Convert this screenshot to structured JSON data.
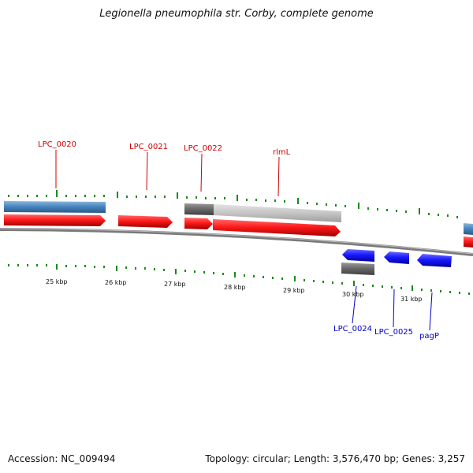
{
  "title": "Legionella pneumophila str. Corby, complete genome",
  "footer": {
    "accession": "Accession: NC_009494",
    "summary": "Topology: circular; Length: 3,576,470 bp; Genes: 3,257"
  },
  "colors": {
    "forward_cds": "#ff1a1a",
    "reverse_cds": "#1a1aff",
    "gene_blue": "#4a87c0",
    "gray": "#6b6b6b",
    "light_gray": "#c4c4c4",
    "tick": "#1a8a1a",
    "label_red": "#cc0000",
    "label_blue": "#0000cc"
  },
  "scale": {
    "units": "kbp",
    "ticks": [
      "25 kbp",
      "26 kbp",
      "27 kbp",
      "28 kbp",
      "29 kbp",
      "30 kbp",
      "31 kbp"
    ]
  },
  "top_labels": [
    "LPC_0020",
    "LPC_0021",
    "LPC_0022",
    "rlmL"
  ],
  "bottom_labels": [
    "LPC_0024",
    "LPC_0025",
    "pagP"
  ]
}
